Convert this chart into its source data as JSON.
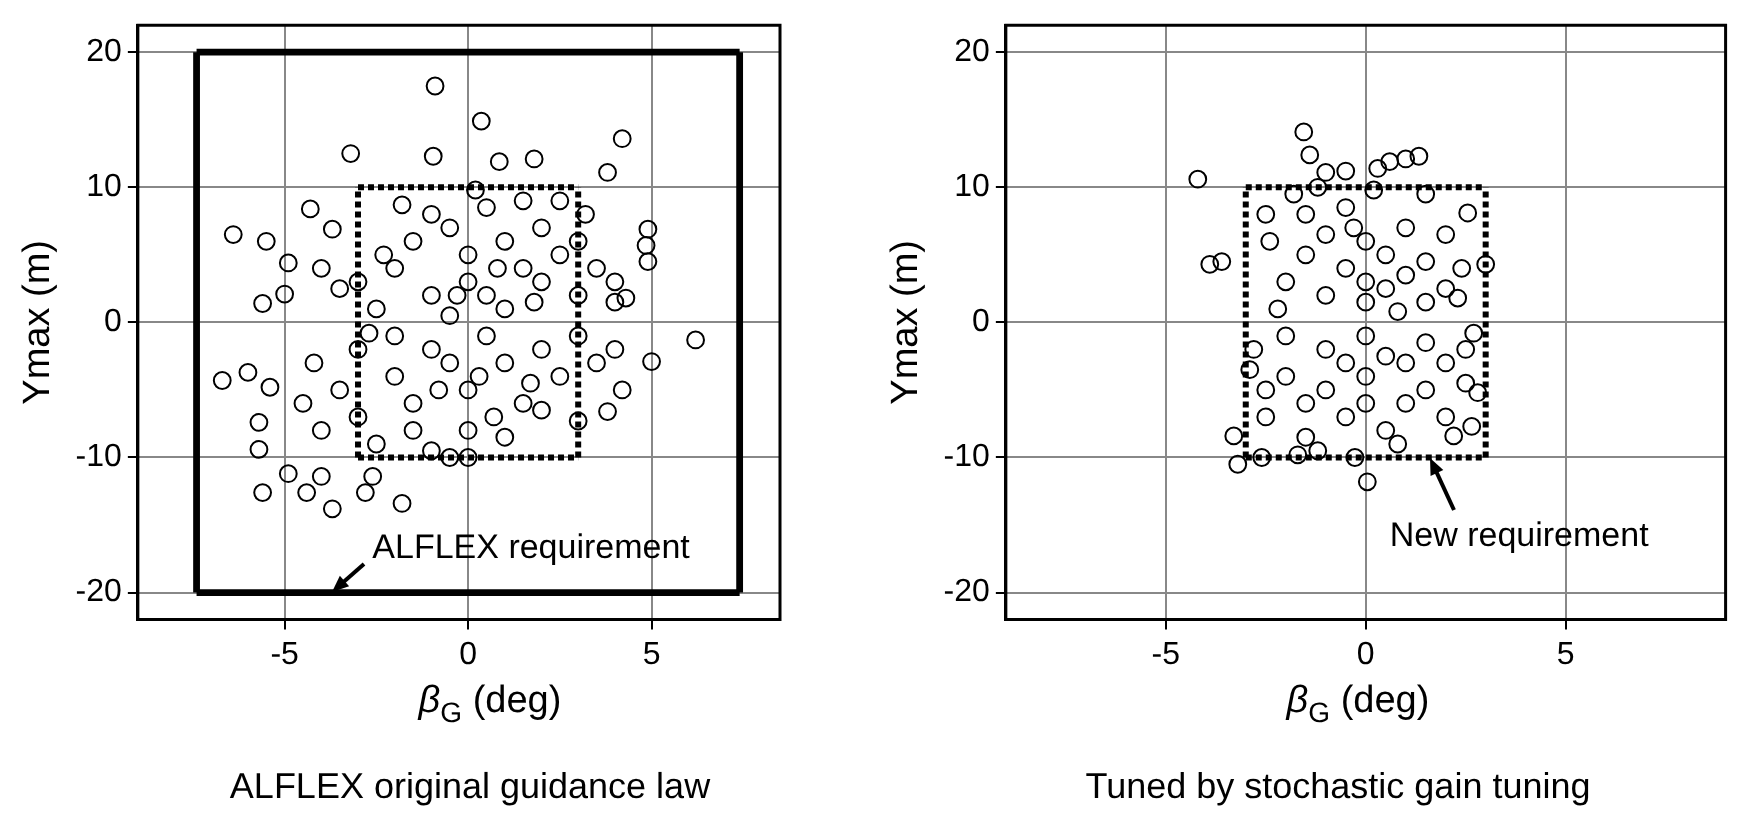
{
  "chart_data": [
    {
      "type": "scatter",
      "title": "ALFLEX original guidance law",
      "xlabel": "β$_{G}$ (deg)",
      "ylabel": "Ymax (m)",
      "xlim": [
        -9,
        8.5
      ],
      "xticks": [
        -5,
        0,
        5
      ],
      "ylim": [
        -22,
        22
      ],
      "yticks": [
        -20,
        -10,
        0,
        10,
        20
      ],
      "grid": true,
      "legend": false,
      "marker": "circle",
      "annotations": [
        {
          "text": "ALFLEX requirement",
          "x": -3.7,
          "y": -20
        }
      ],
      "series": [
        {
          "type": "scatter",
          "color": "#000000",
          "x": [
            -0.9,
            0.36,
            -3.2,
            -0.95,
            0.85,
            1.8,
            4.2,
            3.8,
            -6.4,
            -5.5,
            -4.3,
            -3.7,
            -4.9,
            -5.0,
            -5.6,
            -6.7,
            -6.0,
            -5.4,
            -5.7,
            -5.7,
            -5.6,
            -4.9,
            -4.4,
            -4.0,
            -3.7,
            -2.8,
            -2.6,
            -1.8,
            6.2,
            5.0,
            3.8,
            4.2,
            4.9,
            4.9,
            4.85,
            4.3,
            -2,
            -1.5,
            -1,
            -0.5,
            0,
            0,
            0.5,
            1,
            1.5,
            2,
            2.5,
            3,
            3.5,
            4,
            -3,
            -2.5,
            -1,
            0.5,
            1,
            2,
            3,
            -3.5,
            -4,
            -0.5,
            1.5,
            2.5,
            0.2,
            -1.8,
            3.2,
            4,
            -2.3,
            0.8,
            -0.3,
            1.8,
            -4.5,
            -4,
            -3.5,
            -3,
            -2.5,
            -2,
            -1.5,
            -1,
            -0.5,
            0,
            0,
            0.5,
            1,
            1.5,
            2,
            2.5,
            3,
            3.5,
            4,
            -3,
            -2,
            -1,
            0,
            -0.5,
            1,
            2,
            -1.5,
            -4.2,
            0.3,
            -0.8,
            3,
            -2.7,
            0.7,
            1.7
          ],
          "values": [
            17.5,
            14.9,
            12.5,
            12.3,
            11.9,
            12.1,
            13.6,
            11.1,
            6.5,
            6.0,
            8.4,
            6.9,
            4.4,
            2.1,
            1.4,
            -4.3,
            -3.7,
            -4.8,
            -7.4,
            -9.4,
            -12.6,
            -11.2,
            -12.6,
            -11.4,
            -13.8,
            -12.6,
            -11.4,
            -13.4,
            -1.3,
            -2.9,
            -6.6,
            -5.0,
            6.9,
            4.5,
            5.7,
            1.8,
            4,
            6,
            8,
            7,
            5,
            3,
            2,
            6,
            4,
            3,
            5,
            2,
            4,
            3,
            3,
            1,
            2,
            8.5,
            1,
            7,
            6,
            2.5,
            4,
            0.5,
            9,
            9,
            9.8,
            8.7,
            8,
            1.5,
            5,
            4,
            2,
            1.5,
            -6,
            -8,
            -5,
            -7,
            -9,
            -4,
            -6,
            -2,
            -3,
            -5,
            -8,
            -1,
            -3,
            -6,
            -2,
            -4,
            -1,
            -3,
            -2,
            -2,
            -1,
            -9.5,
            -10,
            -10,
            -8.5,
            -6.5,
            -8,
            -3,
            -4,
            -5,
            -7.3,
            -0.8,
            -7,
            -4.5
          ]
        },
        {
          "type": "line",
          "color": "#000000",
          "line_style": "solid",
          "marker": "none",
          "x": [
            -7.4,
            7.4
          ],
          "values": [
            -20,
            -20
          ]
        },
        {
          "type": "line",
          "color": "#000000",
          "line_style": "solid",
          "marker": "none",
          "x": [
            -7.4,
            7.4
          ],
          "values": [
            20,
            20
          ]
        },
        {
          "type": "line",
          "color": "#000000",
          "line_style": "solid",
          "marker": "none",
          "x": [
            -7.4,
            -7.4
          ],
          "values": [
            -20,
            20
          ]
        },
        {
          "type": "line",
          "color": "#000000",
          "line_style": "solid",
          "marker": "none",
          "x": [
            7.4,
            7.4
          ],
          "values": [
            -20,
            20
          ]
        },
        {
          "type": "line",
          "color": "#000000",
          "line_style": "dotted",
          "marker": "none",
          "x": [
            -3,
            3
          ],
          "values": [
            -10,
            -10
          ]
        },
        {
          "type": "line",
          "color": "#000000",
          "line_style": "dotted",
          "marker": "none",
          "x": [
            -3,
            3
          ],
          "values": [
            10,
            10
          ]
        },
        {
          "type": "line",
          "color": "#000000",
          "line_style": "dotted",
          "marker": "none",
          "x": [
            -3,
            -3
          ],
          "values": [
            -10,
            10
          ]
        },
        {
          "type": "line",
          "color": "#000000",
          "line_style": "dotted",
          "marker": "none",
          "x": [
            3,
            3
          ],
          "values": [
            -10,
            10
          ]
        }
      ]
    },
    {
      "type": "scatter",
      "title": "Tuned by stochastic gain tuning",
      "xlabel": "β$_{G}$ (deg)",
      "ylabel": "Ymax (m)",
      "xlim": [
        -9,
        9
      ],
      "xticks": [
        -5,
        0,
        5
      ],
      "ylim": [
        -22,
        22
      ],
      "yticks": [
        -20,
        -10,
        0,
        10,
        20
      ],
      "grid": true,
      "legend": false,
      "marker": "circle",
      "annotations": [
        {
          "text": "New requirement",
          "x": 1.6,
          "y": -10
        }
      ],
      "series": [
        {
          "type": "scatter",
          "color": "#000000",
          "x": [
            -4.2,
            -3.9,
            -3.6,
            -1.55,
            -1.4,
            1.33,
            1.0,
            0.6,
            0.3,
            -0.5,
            -1.0,
            0.04,
            -3.2,
            -2.6,
            -3.3,
            3.0,
            2.8,
            2.65,
            2.2,
            2.55,
            1.5,
            -0.27,
            -1.7,
            -2.4,
            -2,
            -2.2,
            -1.5,
            -1.5,
            -1,
            -1,
            -0.5,
            -0.5,
            0,
            0,
            0,
            0.5,
            0.5,
            1,
            1,
            1.5,
            1.5,
            2,
            2,
            2.4,
            -1.8,
            0.2,
            -0.3,
            0.8,
            -2.5,
            2.3,
            -1.2,
            -2.8,
            -2.5,
            -2.5,
            -2,
            -2,
            -1.5,
            -1.5,
            -1,
            -1,
            -0.5,
            -0.5,
            0,
            0,
            0,
            0.5,
            0.5,
            1,
            1,
            1.5,
            1.5,
            2,
            2,
            2.5,
            2.5,
            -1.2,
            0.8,
            -2.9,
            2.7
          ],
          "values": [
            10.6,
            4.3,
            4.5,
            14.1,
            12.4,
            12.3,
            12.1,
            11.9,
            11.4,
            11.2,
            11.1,
            -11.8,
            -10.5,
            -10.0,
            -8.4,
            4.3,
            -5.2,
            -7.7,
            -8.4,
            8.1,
            9.5,
            -10.0,
            -9.8,
            6,
            3,
            1,
            8,
            5,
            2,
            6.5,
            4,
            8.5,
            3,
            6,
            1.5,
            5,
            2.5,
            7,
            3.5,
            4.5,
            1.5,
            6.5,
            2.5,
            4,
            9.5,
            9.8,
            7,
            0.8,
            8,
            1.8,
            10,
            -2,
            -5,
            -7,
            -1,
            -4,
            -6,
            -8.5,
            -2,
            -5,
            -3,
            -7,
            -1,
            -4,
            -6,
            -2.5,
            -8,
            -3,
            -6,
            -1.5,
            -5,
            -3,
            -7,
            -2,
            -4.5,
            -9.5,
            -9,
            -3.5,
            -0.8
          ]
        },
        {
          "type": "line",
          "color": "#000000",
          "line_style": "dotted",
          "marker": "none",
          "x": [
            -3,
            3
          ],
          "values": [
            -10,
            -10
          ]
        },
        {
          "type": "line",
          "color": "#000000",
          "line_style": "dotted",
          "marker": "none",
          "x": [
            -3,
            3
          ],
          "values": [
            10,
            10
          ]
        },
        {
          "type": "line",
          "color": "#000000",
          "line_style": "dotted",
          "marker": "none",
          "x": [
            -3,
            -3
          ],
          "values": [
            -10,
            10
          ]
        },
        {
          "type": "line",
          "color": "#000000",
          "line_style": "dotted",
          "marker": "none",
          "x": [
            3,
            3
          ],
          "values": [
            -10,
            10
          ]
        }
      ]
    }
  ]
}
